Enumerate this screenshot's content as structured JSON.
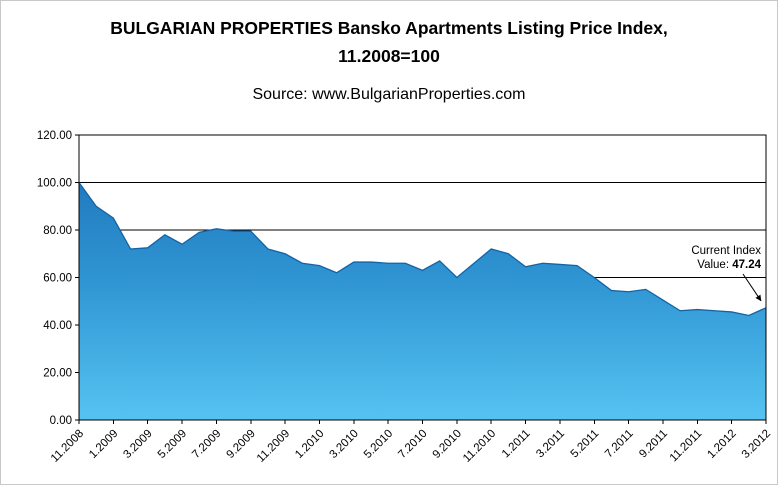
{
  "title": {
    "line1": "BULGARIAN PROPERTIES Bansko Apartments Listing Price Index,",
    "line2": "11.2008=100"
  },
  "source": "Source: www.BulgarianProperties.com",
  "annotation": {
    "line1": "Current Index",
    "line2_label": "Value:",
    "value": "47.24"
  },
  "chart_data": {
    "type": "area",
    "title": "BULGARIAN PROPERTIES Bansko Apartments Listing Price Index, 11.2008=100",
    "subtitle": "Source: www.BulgarianProperties.com",
    "x": [
      "11.2008",
      "12.2008",
      "1.2009",
      "2.2009",
      "3.2009",
      "4.2009",
      "5.2009",
      "6.2009",
      "7.2009",
      "8.2009",
      "9.2009",
      "10.2009",
      "11.2009",
      "12.2009",
      "1.2010",
      "2.2010",
      "3.2010",
      "4.2010",
      "5.2010",
      "6.2010",
      "7.2010",
      "8.2010",
      "9.2010",
      "10.2010",
      "11.2010",
      "12.2010",
      "1.2011",
      "2.2011",
      "3.2011",
      "4.2011",
      "5.2011",
      "6.2011",
      "7.2011",
      "8.2011",
      "9.2011",
      "10.2011",
      "11.2011",
      "12.2011",
      "1.2012",
      "2.2012",
      "3.2012"
    ],
    "values": [
      100,
      90,
      85,
      72,
      72.5,
      78,
      74,
      79,
      80.5,
      79.5,
      79.5,
      72,
      70,
      66,
      65,
      62,
      66.5,
      66.5,
      66,
      66,
      63,
      67,
      60,
      66,
      72,
      70,
      64.5,
      66,
      65.5,
      65,
      60,
      54.5,
      54,
      55,
      50.5,
      46,
      46.5,
      46,
      45.5,
      44,
      47.24
    ],
    "tick_labels": [
      "11.2008",
      "1.2009",
      "3.2009",
      "5.2009",
      "7.2009",
      "9.2009",
      "11.2009",
      "1.2010",
      "3.2010",
      "5.2010",
      "7.2010",
      "9.2010",
      "11.2010",
      "1.2011",
      "3.2011",
      "5.2011",
      "7.2011",
      "9.2011",
      "11.2011",
      "1.2012",
      "3.2012"
    ],
    "tick_every": 2,
    "xlabel": "",
    "ylabel": "",
    "ylim": [
      0,
      120
    ],
    "ytick_step": 20,
    "ytick_labels": [
      "0.00",
      "20.00",
      "40.00",
      "60.00",
      "80.00",
      "100.00",
      "120.00"
    ],
    "grid": "horizontal",
    "legend": "none",
    "current_index_value": 47.24,
    "colors": {
      "area_top": "#1a6fb5",
      "area_mid": "#2f94d2",
      "area_bottom": "#55c3f2",
      "area_edge": "#1563a5",
      "gridline": "#000000",
      "axis": "#000000",
      "text": "#000000"
    }
  }
}
